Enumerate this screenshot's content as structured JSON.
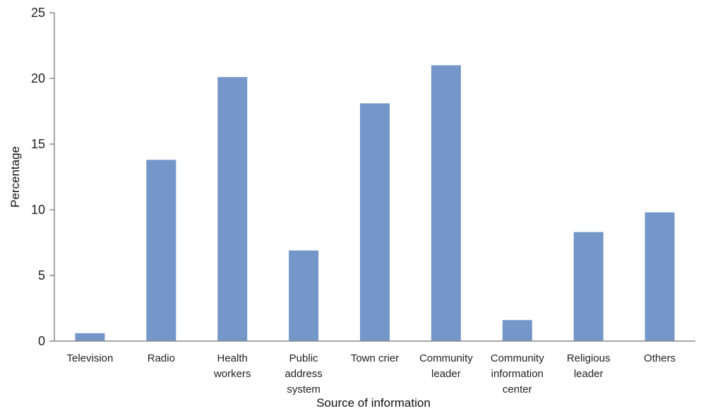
{
  "chart_data": {
    "type": "bar",
    "categories": [
      [
        "Television"
      ],
      [
        "Radio"
      ],
      [
        "Health",
        "workers"
      ],
      [
        "Public",
        "address",
        "system"
      ],
      [
        "Town crier"
      ],
      [
        "Community",
        "leader"
      ],
      [
        "Community",
        "information",
        "center"
      ],
      [
        "Religious",
        "leader"
      ],
      [
        "Others"
      ]
    ],
    "values": [
      0.6,
      13.8,
      20.1,
      6.9,
      18.1,
      21.0,
      1.6,
      8.3,
      9.8
    ],
    "title": "",
    "xlabel": "Source of information",
    "ylabel": "Percentage",
    "ylim": [
      0,
      25
    ],
    "yticks": [
      0,
      5,
      10,
      15,
      20,
      25
    ],
    "grid": false,
    "bar_color": "#7496c8",
    "axis_color": "#8a8a8a"
  }
}
